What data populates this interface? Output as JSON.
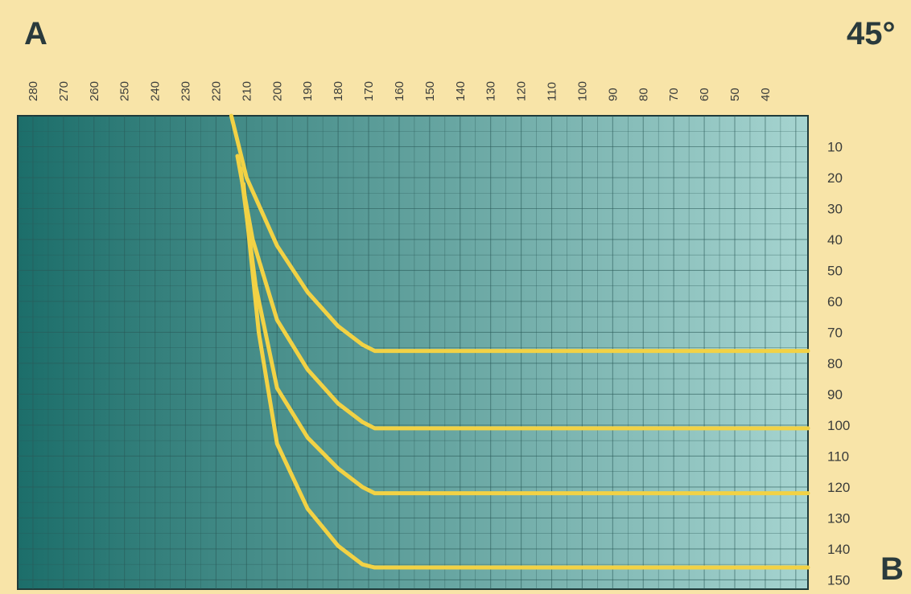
{
  "corner_labels": {
    "top_left": "A",
    "top_right": "45°",
    "bottom_right": "B"
  },
  "chart_data": {
    "type": "line",
    "title": "",
    "xlabel": "",
    "ylabel": "",
    "x_axis": {
      "position": "top",
      "reversed": true,
      "ticks": [
        "280",
        "270",
        "260",
        "250",
        "240",
        "230",
        "220",
        "210",
        "200",
        "190",
        "180",
        "170",
        "160",
        "150",
        "140",
        "130",
        "120",
        "110",
        "100",
        "90",
        "80",
        "70",
        "60",
        "50",
        "40"
      ]
    },
    "y_axis": {
      "position": "right",
      "reversed": true,
      "ticks": [
        "10",
        "20",
        "30",
        "40",
        "50",
        "60",
        "70",
        "80",
        "90",
        "100",
        "110",
        "120",
        "130",
        "140",
        "150"
      ]
    },
    "xlim": [
      285,
      26
    ],
    "ylim": [
      0,
      153
    ],
    "grid": true,
    "series": [
      {
        "label": "",
        "x": [
          215,
          210,
          200,
          190,
          180,
          172,
          168,
          26
        ],
        "y": [
          0,
          20,
          42,
          57,
          68,
          74,
          76,
          76
        ]
      },
      {
        "label": "",
        "x": [
          213,
          208,
          200,
          190,
          180,
          172,
          168,
          26
        ],
        "y": [
          13,
          40,
          66,
          82,
          93,
          99,
          101,
          101
        ]
      },
      {
        "label": "",
        "x": [
          212,
          207,
          200,
          190,
          180,
          172,
          168,
          26
        ],
        "y": [
          17,
          55,
          88,
          104,
          114,
          120,
          122,
          122
        ]
      },
      {
        "label": "",
        "x": [
          211,
          206,
          200,
          190,
          180,
          172,
          168,
          26
        ],
        "y": [
          22,
          70,
          106,
          127,
          139,
          145,
          146,
          146
        ]
      }
    ],
    "annotations": [
      {
        "text": "",
        "x": 140,
        "y": 70
      },
      {
        "text": "",
        "x": 140,
        "y": 95
      },
      {
        "text": "",
        "x": 140,
        "y": 115
      },
      {
        "text": "",
        "x": 140,
        "y": 138
      }
    ],
    "colors": {
      "background": "#f8e4a8",
      "plot_left": "#1c6e6a",
      "plot_right": "#a6d4d0",
      "grid": "#2a5a58",
      "line": "#f2d245",
      "tick_text": "#3a3c3a",
      "annotation_text": "#c8606a"
    }
  }
}
